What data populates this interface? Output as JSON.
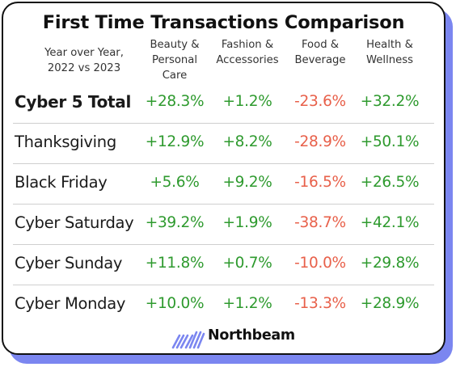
{
  "chart_data": {
    "type": "table",
    "title": "First Time Transactions Comparison",
    "row_header": "Year over Year,\n2022 vs 2023",
    "columns": [
      "Beauty &\nPersonal\nCare",
      "Fashion &\nAccessories",
      "Food &\nBeverage",
      "Health &\nWellness"
    ],
    "rows": [
      {
        "label": "Cyber 5 Total",
        "values": [
          "+28.3%",
          "+1.2%",
          "-23.6%",
          "+32.2%"
        ],
        "numeric": [
          28.3,
          1.2,
          -23.6,
          32.2
        ]
      },
      {
        "label": "Thanksgiving",
        "values": [
          "+12.9%",
          "+8.2%",
          "-28.9%",
          "+50.1%"
        ],
        "numeric": [
          12.9,
          8.2,
          -28.9,
          50.1
        ]
      },
      {
        "label": "Black Friday",
        "values": [
          "+5.6%",
          "+9.2%",
          "-16.5%",
          "+26.5%"
        ],
        "numeric": [
          5.6,
          9.2,
          -16.5,
          26.5
        ]
      },
      {
        "label": "Cyber Saturday",
        "values": [
          "+39.2%",
          "+1.9%",
          "-38.7%",
          "+42.1%"
        ],
        "numeric": [
          39.2,
          1.9,
          -38.7,
          42.1
        ]
      },
      {
        "label": "Cyber Sunday",
        "values": [
          "+11.8%",
          "+0.7%",
          "-10.0%",
          "+29.8%"
        ],
        "numeric": [
          11.8,
          0.7,
          -10.0,
          29.8
        ]
      },
      {
        "label": "Cyber Monday",
        "values": [
          "+10.0%",
          "+1.2%",
          "-13.3%",
          "+28.9%"
        ],
        "numeric": [
          10.0,
          1.2,
          -13.3,
          28.9
        ]
      }
    ],
    "colors": {
      "positive": "#2e9a2e",
      "negative": "#e8604a",
      "accent": "#7b86f0"
    }
  },
  "brand": {
    "name": "Northbeam",
    "icon": "northbeam-logo-icon"
  }
}
